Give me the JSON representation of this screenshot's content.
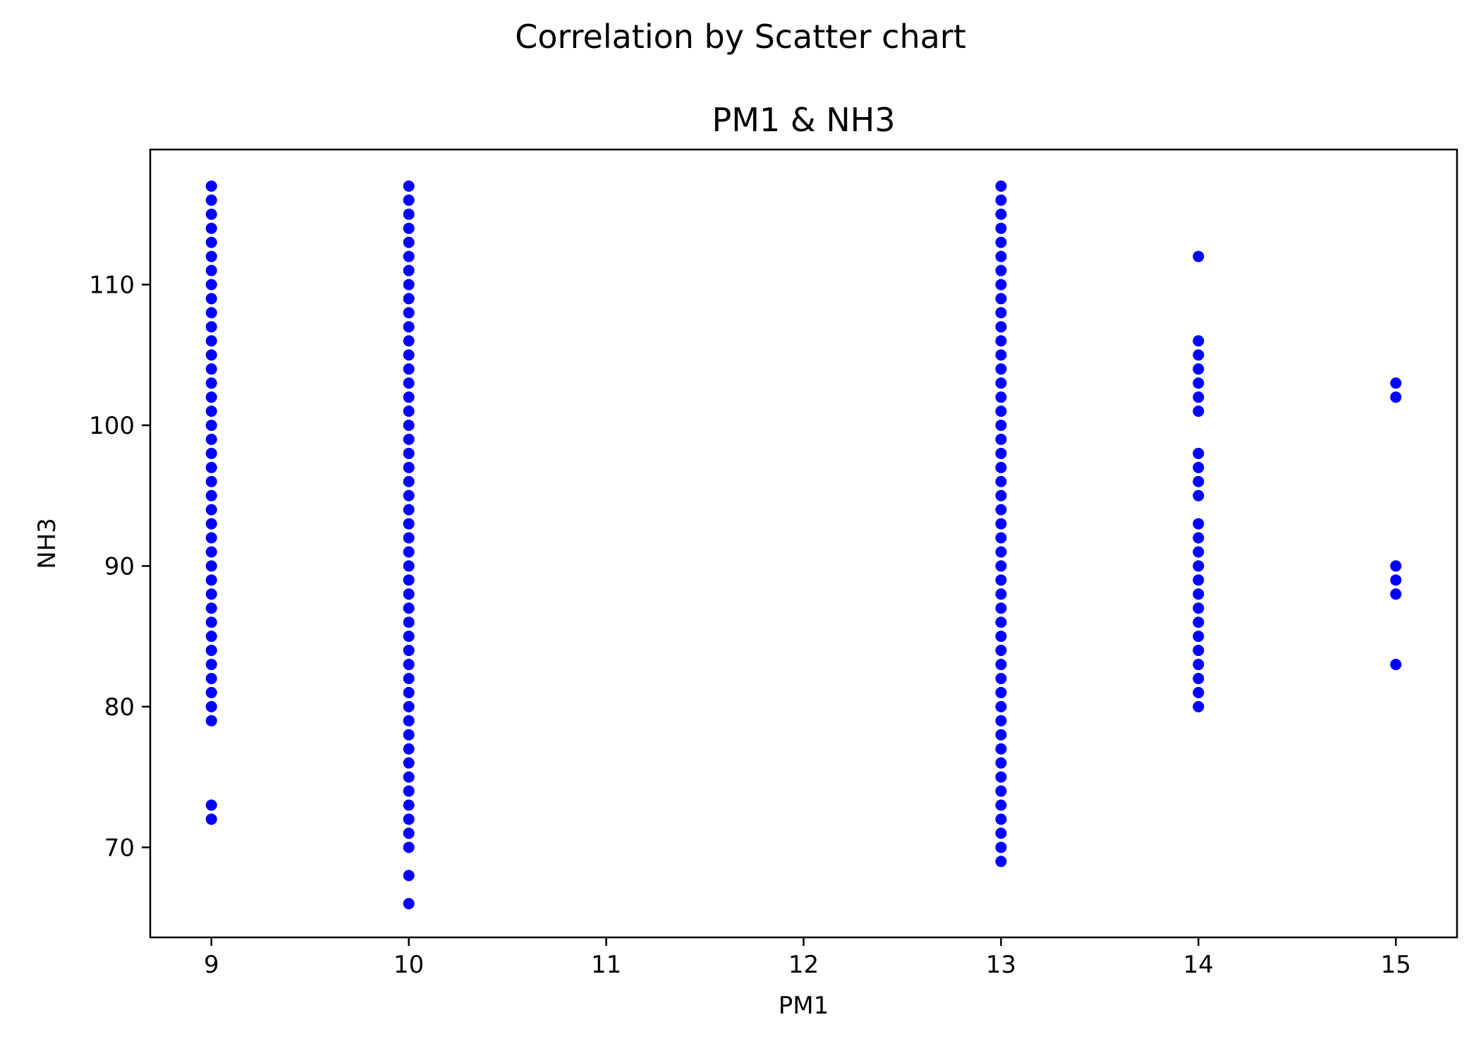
{
  "figure_title": "Correlation by Scatter chart",
  "chart_data": {
    "type": "scatter",
    "title": "PM1 & NH3",
    "xlabel": "PM1",
    "ylabel": "NH3",
    "xlim": [
      8.69,
      15.31
    ],
    "ylim": [
      63.6,
      119.6
    ],
    "xticks": [
      9,
      10,
      11,
      12,
      13,
      14,
      15
    ],
    "yticks": [
      70,
      80,
      90,
      100,
      110
    ],
    "grid": false,
    "marker_color": "#0000ff",
    "series": [
      {
        "points": [
          [
            9,
            72
          ],
          [
            9,
            73
          ],
          [
            9,
            79
          ],
          [
            9,
            80
          ],
          [
            9,
            81
          ],
          [
            9,
            82
          ],
          [
            9,
            83
          ],
          [
            9,
            84
          ],
          [
            9,
            85
          ],
          [
            9,
            86
          ],
          [
            9,
            87
          ],
          [
            9,
            88
          ],
          [
            9,
            89
          ],
          [
            9,
            90
          ],
          [
            9,
            91
          ],
          [
            9,
            92
          ],
          [
            9,
            93
          ],
          [
            9,
            94
          ],
          [
            9,
            95
          ],
          [
            9,
            96
          ],
          [
            9,
            97
          ],
          [
            9,
            98
          ],
          [
            9,
            99
          ],
          [
            9,
            100
          ],
          [
            9,
            101
          ],
          [
            9,
            102
          ],
          [
            9,
            103
          ],
          [
            9,
            104
          ],
          [
            9,
            105
          ],
          [
            9,
            106
          ],
          [
            9,
            107
          ],
          [
            9,
            108
          ],
          [
            9,
            109
          ],
          [
            9,
            110
          ],
          [
            9,
            111
          ],
          [
            9,
            112
          ],
          [
            9,
            113
          ],
          [
            9,
            114
          ],
          [
            9,
            115
          ],
          [
            9,
            116
          ],
          [
            9,
            117
          ],
          [
            10,
            66
          ],
          [
            10,
            68
          ],
          [
            10,
            70
          ],
          [
            10,
            71
          ],
          [
            10,
            72
          ],
          [
            10,
            73
          ],
          [
            10,
            74
          ],
          [
            10,
            75
          ],
          [
            10,
            76
          ],
          [
            10,
            77
          ],
          [
            10,
            78
          ],
          [
            10,
            79
          ],
          [
            10,
            80
          ],
          [
            10,
            81
          ],
          [
            10,
            82
          ],
          [
            10,
            83
          ],
          [
            10,
            84
          ],
          [
            10,
            85
          ],
          [
            10,
            86
          ],
          [
            10,
            87
          ],
          [
            10,
            88
          ],
          [
            10,
            89
          ],
          [
            10,
            90
          ],
          [
            10,
            91
          ],
          [
            10,
            92
          ],
          [
            10,
            93
          ],
          [
            10,
            94
          ],
          [
            10,
            95
          ],
          [
            10,
            96
          ],
          [
            10,
            97
          ],
          [
            10,
            98
          ],
          [
            10,
            99
          ],
          [
            10,
            100
          ],
          [
            10,
            101
          ],
          [
            10,
            102
          ],
          [
            10,
            103
          ],
          [
            10,
            104
          ],
          [
            10,
            105
          ],
          [
            10,
            106
          ],
          [
            10,
            107
          ],
          [
            10,
            108
          ],
          [
            10,
            109
          ],
          [
            10,
            110
          ],
          [
            10,
            111
          ],
          [
            10,
            112
          ],
          [
            10,
            113
          ],
          [
            10,
            114
          ],
          [
            10,
            115
          ],
          [
            10,
            116
          ],
          [
            10,
            117
          ],
          [
            13,
            69
          ],
          [
            13,
            70
          ],
          [
            13,
            71
          ],
          [
            13,
            72
          ],
          [
            13,
            73
          ],
          [
            13,
            74
          ],
          [
            13,
            75
          ],
          [
            13,
            76
          ],
          [
            13,
            77
          ],
          [
            13,
            78
          ],
          [
            13,
            79
          ],
          [
            13,
            80
          ],
          [
            13,
            81
          ],
          [
            13,
            82
          ],
          [
            13,
            83
          ],
          [
            13,
            84
          ],
          [
            13,
            85
          ],
          [
            13,
            86
          ],
          [
            13,
            87
          ],
          [
            13,
            88
          ],
          [
            13,
            89
          ],
          [
            13,
            90
          ],
          [
            13,
            91
          ],
          [
            13,
            92
          ],
          [
            13,
            93
          ],
          [
            13,
            94
          ],
          [
            13,
            95
          ],
          [
            13,
            96
          ],
          [
            13,
            97
          ],
          [
            13,
            98
          ],
          [
            13,
            99
          ],
          [
            13,
            100
          ],
          [
            13,
            101
          ],
          [
            13,
            102
          ],
          [
            13,
            103
          ],
          [
            13,
            104
          ],
          [
            13,
            105
          ],
          [
            13,
            106
          ],
          [
            13,
            107
          ],
          [
            13,
            108
          ],
          [
            13,
            109
          ],
          [
            13,
            110
          ],
          [
            13,
            111
          ],
          [
            13,
            112
          ],
          [
            13,
            113
          ],
          [
            13,
            114
          ],
          [
            13,
            115
          ],
          [
            13,
            116
          ],
          [
            13,
            117
          ],
          [
            14,
            80
          ],
          [
            14,
            81
          ],
          [
            14,
            82
          ],
          [
            14,
            83
          ],
          [
            14,
            84
          ],
          [
            14,
            85
          ],
          [
            14,
            86
          ],
          [
            14,
            87
          ],
          [
            14,
            88
          ],
          [
            14,
            89
          ],
          [
            14,
            90
          ],
          [
            14,
            91
          ],
          [
            14,
            92
          ],
          [
            14,
            93
          ],
          [
            14,
            95
          ],
          [
            14,
            96
          ],
          [
            14,
            97
          ],
          [
            14,
            98
          ],
          [
            14,
            101
          ],
          [
            14,
            102
          ],
          [
            14,
            103
          ],
          [
            14,
            104
          ],
          [
            14,
            105
          ],
          [
            14,
            106
          ],
          [
            14,
            112
          ],
          [
            15,
            83
          ],
          [
            15,
            88
          ],
          [
            15,
            89
          ],
          [
            15,
            90
          ],
          [
            15,
            102
          ],
          [
            15,
            103
          ]
        ]
      }
    ]
  }
}
